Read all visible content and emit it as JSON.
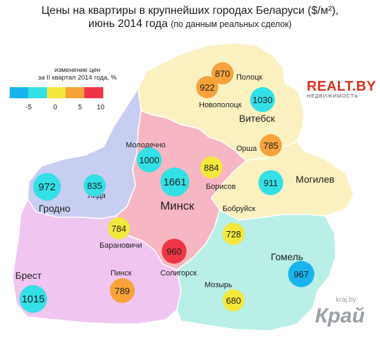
{
  "title": {
    "line1": "Цены на квартиры в крупнейших городах Беларуси ($/м²),",
    "line2": "июнь 2014 года",
    "line2_note": "(по данным реальных сделок)"
  },
  "legend": {
    "title_line1": "изменение цен",
    "title_line2": "за II квартал 2014 года, %",
    "ticks": [
      "-5",
      "0",
      "5",
      "10"
    ],
    "colors": [
      "#19b4ee",
      "#33e0e6",
      "#f3e83c",
      "#f7a23a",
      "#ee3545"
    ]
  },
  "regions": {
    "minsk": {
      "label": "Минск",
      "color": "#f6b7c2"
    },
    "vitebsk": {
      "label": "Витебск",
      "color": "#fbf0c0"
    },
    "mogilev": {
      "label": "Могилев",
      "color": "#fbf0c0"
    },
    "grodno": {
      "label": "Гродно",
      "color": "#c8cdf2"
    },
    "brest": {
      "label": "Брест",
      "color": "#f0c6f1"
    },
    "gomel": {
      "label": "Гомель",
      "color": "#b9efe6"
    }
  },
  "cities": [
    {
      "name": "Полоцк",
      "value": 870,
      "color": "#f7a23a"
    },
    {
      "name": "Новополоцк",
      "value": 922,
      "color": "#f7a23a"
    },
    {
      "name": "Витебск",
      "value": 1030,
      "color": "#33e0e6"
    },
    {
      "name": "Орша",
      "value": 785,
      "color": "#f7a23a"
    },
    {
      "name": "Молодечно",
      "value": 1000,
      "color": "#33e0e6"
    },
    {
      "name": "Борисов",
      "value": 884,
      "color": "#f3e83c"
    },
    {
      "name": "Минск",
      "value": 1661,
      "color": "#33e0e6"
    },
    {
      "name": "Могилев",
      "value": 911,
      "color": "#33e0e6"
    },
    {
      "name": "Гродно",
      "value": 972,
      "color": "#33e0e6"
    },
    {
      "name": "Лида",
      "value": 835,
      "color": "#33e0e6"
    },
    {
      "name": "Бобруйск",
      "value": 728,
      "color": "#f3e83c"
    },
    {
      "name": "Барановичи",
      "value": 784,
      "color": "#f3e83c"
    },
    {
      "name": "Солигорск",
      "value": 960,
      "color": "#ee3545"
    },
    {
      "name": "Гомель",
      "value": 967,
      "color": "#19b4ee"
    },
    {
      "name": "Брест",
      "value": 1015,
      "color": "#33e0e6"
    },
    {
      "name": "Пинск",
      "value": 789,
      "color": "#f7a23a"
    },
    {
      "name": "Мозырь",
      "value": 680,
      "color": "#f3e83c"
    }
  ],
  "logo": {
    "main": "REALT.BY",
    "sub": "НЕДВИЖИМОСТЬ"
  },
  "watermark": {
    "url": "kraj.by",
    "name": "Край"
  }
}
